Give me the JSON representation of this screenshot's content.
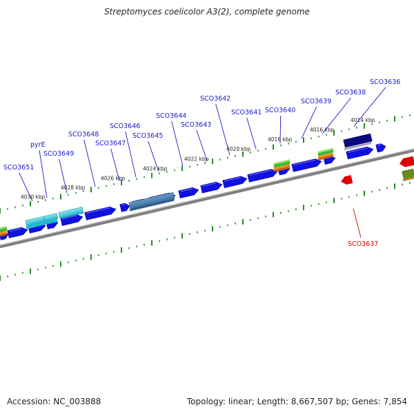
{
  "title": "Streptomyces coelicolor A3(2), complete genome",
  "footer": {
    "accession": "Accession: NC_003888",
    "summary": "Topology: linear; Length: 8,667,507 bp; Genes: 7,854"
  },
  "colors": {
    "forward_gene": "#1010e0",
    "reverse_gene": "#e00000",
    "backbone": "#808080",
    "tick_marks": "#2a8a2a",
    "label_forward": "#1818c8",
    "label_reverse": "#d00000",
    "selected_gene": "#0a0a80",
    "feature_cyan": "#40c8d8",
    "feature_steel": "#4f7fae",
    "feature_green": "#38b838",
    "feature_orange": "#f09020",
    "feature_olive": "#6a8a20"
  },
  "kbp_labels": [
    "4030 kbp",
    "4028 kbp",
    "4026 kbp",
    "4024 kbp",
    "4022 kbp",
    "4020 kbp",
    "4018 kbp",
    "4016 kbp",
    "4014 kbp"
  ],
  "gene_labels": [
    "SCO3651",
    "pyrE",
    "SCO3649",
    "SCO3648",
    "SCO3647",
    "SCO3646",
    "SCO3645",
    "SCO3644",
    "SCO3643",
    "SCO3642",
    "SCO3641",
    "SCO3640",
    "SCO3639",
    "SCO3638",
    "SCO3636"
  ],
  "reverse_gene_labels": [
    "SCO3637"
  ]
}
